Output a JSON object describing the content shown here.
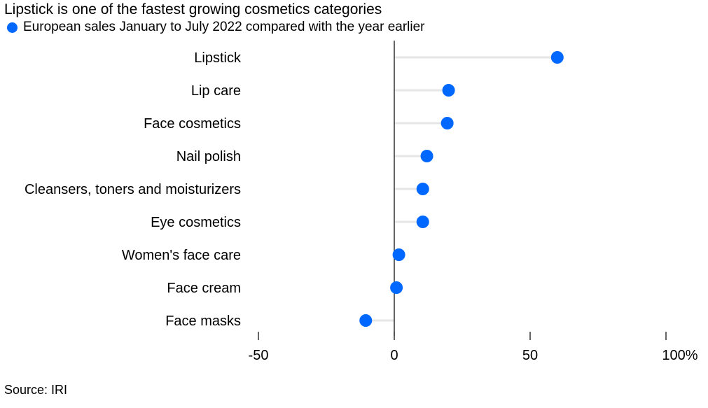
{
  "title": "Lipstick is one of the fastest growing cosmetics categories",
  "legend": {
    "label": "European sales January to July 2022 compared with the year earlier",
    "color": "#0068ff"
  },
  "source": "Source: IRI",
  "chart_data": {
    "type": "dot",
    "title": "Lipstick is one of the fastest growing cosmetics categories",
    "series": [
      {
        "name": "European sales January to July 2022 compared with the year earlier",
        "color": "#0068ff",
        "categories": [
          "Lipstick",
          "Lip care",
          "Face cosmetics",
          "Nail polish",
          "Cleansers, toners and moisturizers",
          "Eye cosmetics",
          "Women's face care",
          "Face cream",
          "Face masks"
        ],
        "values": [
          60,
          20,
          19.5,
          12,
          10.5,
          10.5,
          1.7,
          0.8,
          -10.5
        ]
      }
    ],
    "xlim": [
      -50,
      100
    ],
    "x_ticks": [
      -50,
      0,
      50,
      100
    ],
    "x_tick_labels": [
      "-50",
      "0",
      "50",
      "100%"
    ],
    "grid": false,
    "legend_position": "top-left"
  }
}
